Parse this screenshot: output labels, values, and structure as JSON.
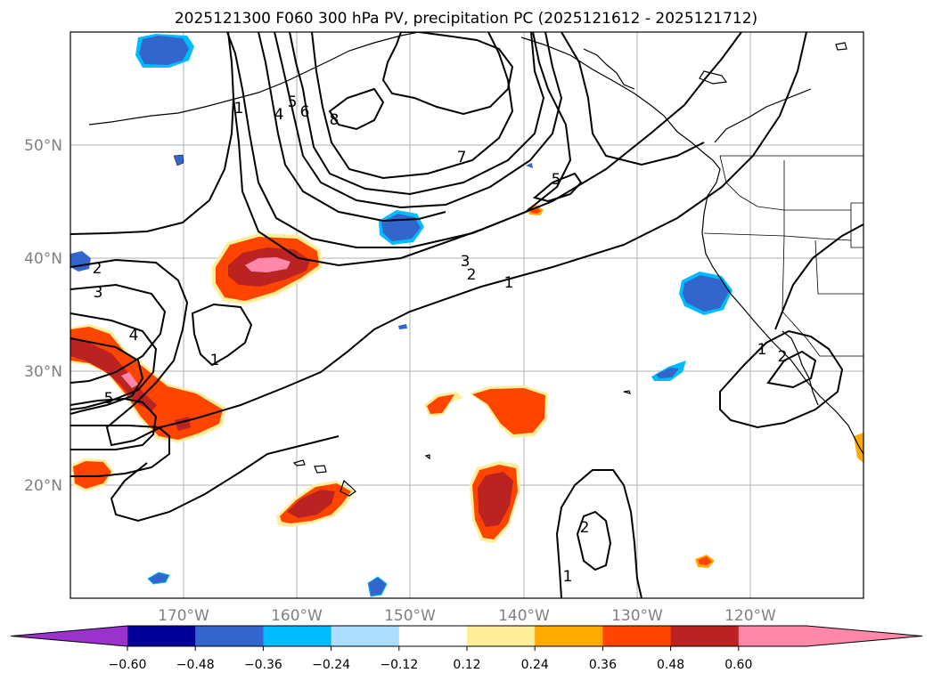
{
  "title": "2025121300 F060 300 hPa PV, precipitation PC (2025121612 - 2025121712)",
  "map": {
    "lat_labels": [
      "50°N",
      "40°N",
      "30°N",
      "20°N"
    ],
    "lon_labels": [
      "170°W",
      "160°W",
      "150°W",
      "140°W",
      "130°W",
      "120°W"
    ],
    "contour_labels": [
      "1",
      "4",
      "5",
      "6",
      "8",
      "7",
      "5",
      "3",
      "2",
      "1",
      "2",
      "3",
      "4",
      "5",
      "1",
      "1",
      "2",
      "2",
      "1"
    ]
  },
  "colorbar": {
    "colors": [
      "#9933cc",
      "#000099",
      "#3366cc",
      "#00bbff",
      "#aaddff",
      "#ffffff",
      "#ffee99",
      "#ffaa00",
      "#ff4400",
      "#bb2222",
      "#ff88aa",
      "#ff88aa"
    ],
    "tick_labels": [
      "−0.60",
      "−0.48",
      "−0.36",
      "−0.24",
      "−0.12",
      "0.12",
      "0.24",
      "0.36",
      "0.48",
      "0.60"
    ]
  }
}
